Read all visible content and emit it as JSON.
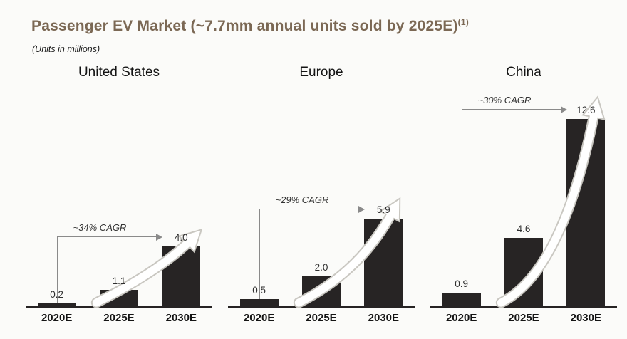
{
  "header": {
    "title": "Passenger EV Market (~7.7mm annual units sold by 2025E)",
    "superscript": "(1)",
    "units_note": "(Units in millions)"
  },
  "chart_data": {
    "type": "bar",
    "categories": [
      "2020E",
      "2025E",
      "2030E"
    ],
    "ylabel": "Units in millions",
    "ylim": [
      0,
      13
    ],
    "grid": false,
    "legend": "none",
    "groups": [
      {
        "name": "United States",
        "values": [
          0.2,
          1.1,
          4.0
        ],
        "cagr_label": "~34% CAGR"
      },
      {
        "name": "Europe",
        "values": [
          0.5,
          2.0,
          5.9
        ],
        "cagr_label": "~29% CAGR"
      },
      {
        "name": "China",
        "values": [
          0.9,
          4.6,
          12.6
        ],
        "cagr_label": "~30% CAGR"
      }
    ],
    "colors": {
      "bar": "#272424",
      "title": "#7b6854",
      "cagr_line": "#8a8a8a",
      "swoosh_fill": "#ffffff",
      "swoosh_outline": "#c9c7c1",
      "background": "#fbfbf9"
    }
  }
}
